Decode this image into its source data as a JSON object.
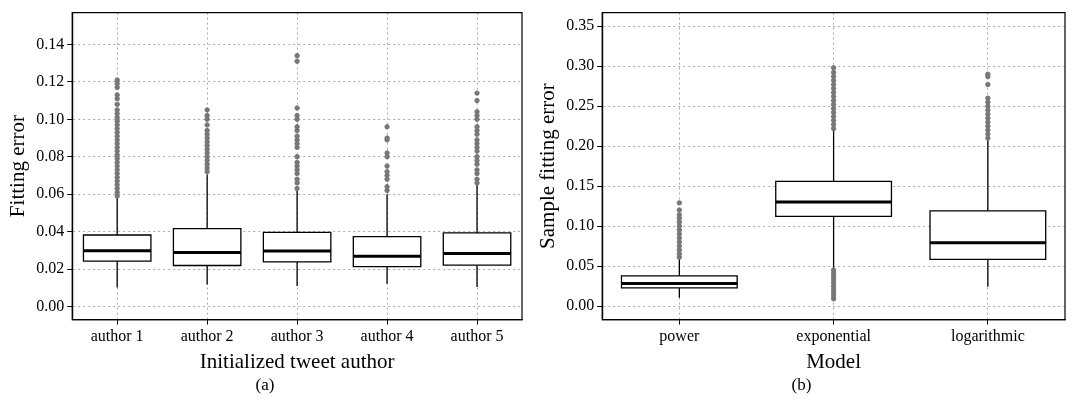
{
  "chart_data": [
    {
      "type": "box",
      "xlabel": "Initialized tweet author",
      "ylabel": "Fitting error",
      "annotations": [
        "(a)"
      ],
      "grid": true,
      "categories": [
        "author 1",
        "author 2",
        "author 3",
        "author 4",
        "author 5"
      ],
      "ylim": [
        -0.007,
        0.157
      ],
      "yticks": [
        {
          "value": 0,
          "label": "0.00"
        },
        {
          "value": 0.02,
          "label": "0.02"
        },
        {
          "value": 0.04,
          "label": "0.04"
        },
        {
          "value": 0.06,
          "label": "0.06"
        },
        {
          "value": 0.08,
          "label": "0.08"
        },
        {
          "value": 0.1,
          "label": "0.10"
        },
        {
          "value": 0.12,
          "label": "0.12"
        },
        {
          "value": 0.14,
          "label": "0.14"
        }
      ],
      "boxes": [
        {
          "low": 0.0102,
          "q1": 0.0242,
          "median": 0.0298,
          "q3": 0.0382,
          "high": 0.0588,
          "outliers": [
            0.059,
            0.061,
            0.063,
            0.065,
            0.067,
            0.069,
            0.071,
            0.073,
            0.075,
            0.077,
            0.079,
            0.081,
            0.083,
            0.085,
            0.087,
            0.089,
            0.091,
            0.093,
            0.095,
            0.097,
            0.099,
            0.101,
            0.103,
            0.105,
            0.108,
            0.111,
            0.113,
            0.117,
            0.119,
            0.121
          ]
        },
        {
          "low": 0.0118,
          "q1": 0.0219,
          "median": 0.0289,
          "q3": 0.0416,
          "high": 0.0705,
          "outliers": [
            0.072,
            0.074,
            0.076,
            0.078,
            0.08,
            0.082,
            0.084,
            0.086,
            0.088,
            0.09,
            0.092,
            0.094,
            0.097,
            0.1,
            0.102,
            0.105
          ]
        },
        {
          "low": 0.011,
          "q1": 0.0238,
          "median": 0.0296,
          "q3": 0.0396,
          "high": 0.063,
          "outliers": [
            0.063,
            0.066,
            0.068,
            0.071,
            0.073,
            0.075,
            0.077,
            0.08,
            0.085,
            0.087,
            0.089,
            0.091,
            0.094,
            0.096,
            0.1,
            0.102,
            0.106,
            0.131,
            0.134
          ]
        },
        {
          "low": 0.0122,
          "q1": 0.0213,
          "median": 0.0269,
          "q3": 0.0373,
          "high": 0.06,
          "outliers": [
            0.062,
            0.064,
            0.068,
            0.07,
            0.072,
            0.075,
            0.08,
            0.082,
            0.089,
            0.09,
            0.096
          ]
        },
        {
          "low": 0.0104,
          "q1": 0.0221,
          "median": 0.0283,
          "q3": 0.0393,
          "high": 0.065,
          "outliers": [
            0.066,
            0.068,
            0.071,
            0.073,
            0.076,
            0.078,
            0.08,
            0.083,
            0.085,
            0.087,
            0.089,
            0.092,
            0.094,
            0.096,
            0.1,
            0.102,
            0.104,
            0.11,
            0.114
          ]
        }
      ]
    },
    {
      "type": "box",
      "xlabel": "Model",
      "ylabel": "Sample fitting error",
      "annotations": [
        "(b)"
      ],
      "grid": true,
      "categories": [
        "power",
        "exponential",
        "logarithmic"
      ],
      "ylim": [
        -0.017,
        0.367
      ],
      "yticks": [
        {
          "value": 0,
          "label": "0.00"
        },
        {
          "value": 0.05,
          "label": "0.05"
        },
        {
          "value": 0.1,
          "label": "0.10"
        },
        {
          "value": 0.15,
          "label": "0.15"
        },
        {
          "value": 0.2,
          "label": "0.20"
        },
        {
          "value": 0.25,
          "label": "0.25"
        },
        {
          "value": 0.3,
          "label": "0.30"
        },
        {
          "value": 0.35,
          "label": "0.35"
        }
      ],
      "boxes": [
        {
          "low": 0.0103,
          "q1": 0.0227,
          "median": 0.0283,
          "q3": 0.0378,
          "high": 0.0605,
          "outliers": [
            0.061,
            0.065,
            0.07,
            0.075,
            0.08,
            0.085,
            0.09,
            0.095,
            0.1,
            0.105,
            0.11,
            0.114,
            0.12,
            0.129
          ]
        },
        {
          "low": 0.0455,
          "q1": 0.112,
          "median": 0.13,
          "q3": 0.156,
          "high": 0.221,
          "outliers": [
            0.009,
            0.013,
            0.017,
            0.021,
            0.025,
            0.029,
            0.033,
            0.037,
            0.041,
            0.045,
            0.222,
            0.227,
            0.232,
            0.237,
            0.242,
            0.247,
            0.252,
            0.257,
            0.262,
            0.267,
            0.272,
            0.277,
            0.282,
            0.287,
            0.292,
            0.298
          ]
        },
        {
          "low": 0.024,
          "q1": 0.0584,
          "median": 0.079,
          "q3": 0.119,
          "high": 0.208,
          "outliers": [
            0.21,
            0.215,
            0.22,
            0.225,
            0.23,
            0.235,
            0.24,
            0.245,
            0.25,
            0.255,
            0.26,
            0.277,
            0.287,
            0.29
          ]
        }
      ]
    }
  ]
}
